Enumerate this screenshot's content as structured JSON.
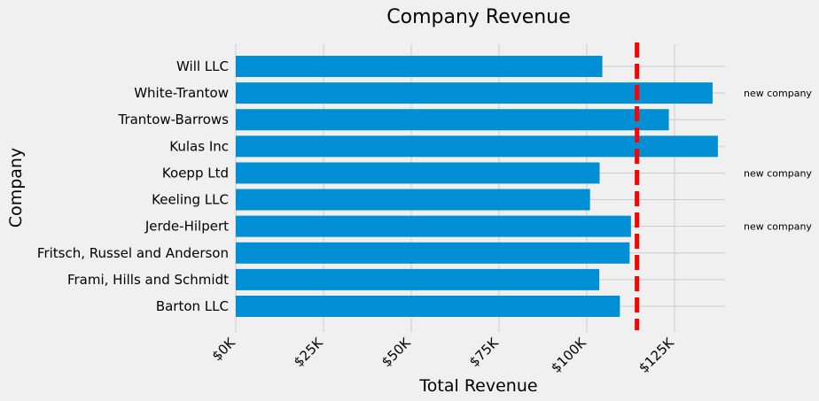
{
  "chart_data": {
    "type": "bar",
    "orientation": "horizontal",
    "title": "Company Revenue",
    "xlabel": "Total Revenue",
    "ylabel": "Company",
    "categories": [
      "Barton LLC",
      "Frami, Hills and Schmidt",
      "Fritsch, Russel and Anderson",
      "Jerde-Hilpert",
      "Keeling LLC",
      "Koepp Ltd",
      "Kulas Inc",
      "Trantow-Barrows",
      "White-Trantow",
      "Will LLC"
    ],
    "values": [
      109438,
      103569,
      112214,
      112591,
      100934,
      103660,
      137351,
      123381,
      135841,
      104437
    ],
    "xlim": [
      -10000,
      140000
    ],
    "xticks": [
      0,
      25000,
      50000,
      75000,
      100000,
      125000
    ],
    "xtick_labels": [
      "$0K",
      "$25K",
      "$50K",
      "$75K",
      "$100K",
      "$125K"
    ],
    "xtick_rotation": 45,
    "average_line": {
      "value": 114300,
      "color": "#ff0000",
      "style": "dashed"
    },
    "annotations": [
      {
        "category": "White-Trantow",
        "text": "new company"
      },
      {
        "category": "Koepp Ltd",
        "text": "new company"
      },
      {
        "category": "Jerde-Hilpert",
        "text": "new company"
      }
    ],
    "bar_color": "#008fd5",
    "grid": true,
    "style": "fivethirtyeight"
  }
}
